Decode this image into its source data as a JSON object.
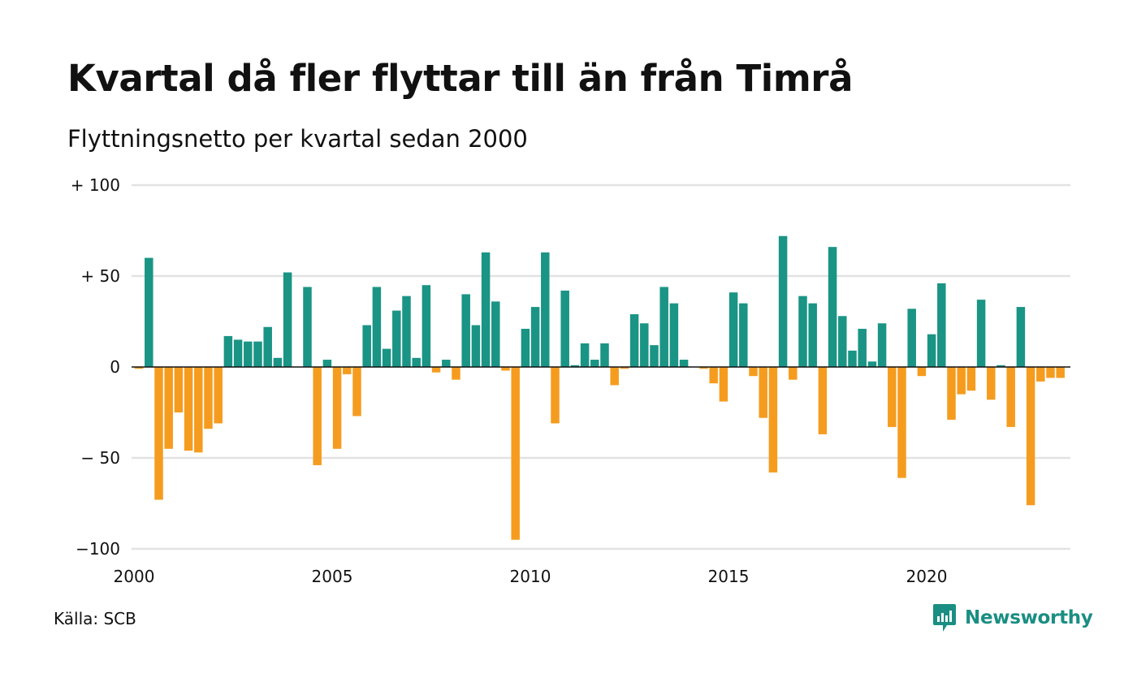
{
  "header": {
    "title": "Kvartal då fler flyttar till än från Timrå",
    "subtitle": "Flyttningsnetto per kvartal sedan 2000"
  },
  "footer": {
    "source": "Källa: SCB",
    "brand": "Newsworthy"
  },
  "colors": {
    "positive": "#1a9485",
    "negative": "#f59c1f",
    "grid": "#e2e2e2",
    "zero_line": "#111111",
    "brand": "#1a8e82"
  },
  "chart_data": {
    "type": "bar",
    "x_start": {
      "year": 2000,
      "quarter": 1
    },
    "x_ticks": [
      "2000",
      "2005",
      "2010",
      "2015",
      "2020"
    ],
    "y_ticks": [
      {
        "value": 100,
        "label": "+ 100"
      },
      {
        "value": 50,
        "label": "+  50"
      },
      {
        "value": 0,
        "label": "0"
      },
      {
        "value": -50,
        "label": "− 50"
      },
      {
        "value": -100,
        "label": "−100"
      }
    ],
    "ylim": [
      -100,
      100
    ],
    "grid": true,
    "series": [
      {
        "values": [
          -1,
          60,
          -73,
          -45,
          -25,
          -46,
          -47,
          -34,
          -31,
          17,
          15,
          14,
          14,
          22,
          5,
          52,
          0,
          44,
          -54,
          4,
          -45,
          -4,
          -27,
          23,
          44,
          10,
          31,
          39,
          5,
          45,
          -3,
          4,
          -7,
          40,
          23,
          63,
          36,
          -2,
          -95,
          21,
          33,
          63,
          -31,
          42,
          1,
          13,
          4,
          13,
          -10,
          -1,
          29,
          24,
          12,
          44,
          35,
          4,
          0,
          -1,
          -9,
          -19,
          41,
          35,
          -5,
          -28,
          -58,
          72,
          -7,
          39,
          35,
          -37,
          66,
          28,
          9,
          21,
          3,
          24,
          -33,
          -61,
          32,
          -5,
          18,
          46,
          -29,
          -15,
          -13,
          37,
          -18,
          1,
          -33,
          33,
          -76,
          -8,
          -6,
          -6
        ]
      }
    ]
  }
}
